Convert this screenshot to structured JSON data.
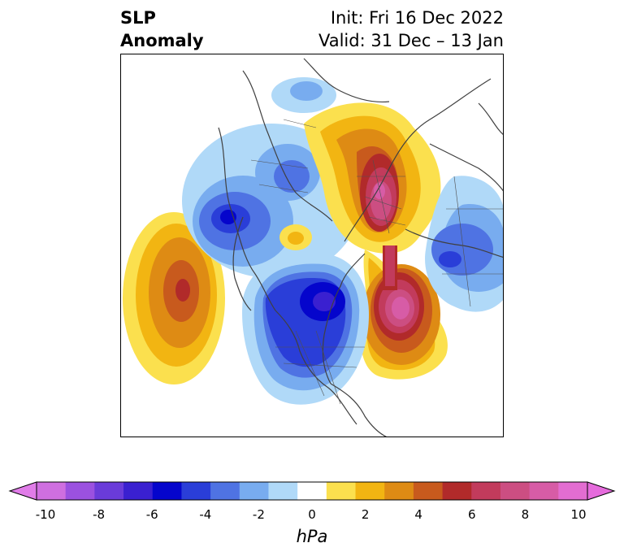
{
  "title": {
    "left_line1": "SLP",
    "left_line2": "Anomaly",
    "right_line1": "Init: Fri 16 Dec 2022",
    "right_line2": "Valid: 31 Dec – 13 Jan"
  },
  "colorbar": {
    "unit": "hPa",
    "ticks": [
      "-10",
      "-8",
      "-6",
      "-4",
      "-2",
      "0",
      "2",
      "4",
      "6",
      "8",
      "10"
    ],
    "colors": [
      "#cf6fe0",
      "#9b51e0",
      "#6a3bd9",
      "#3a20d0",
      "#0505cc",
      "#2a3ed8",
      "#4f73e3",
      "#78acef",
      "#b0d9f8",
      "#ffffff",
      "#fbe04e",
      "#f2b512",
      "#de8b14",
      "#c85a1d",
      "#b12a2a",
      "#c23b5c",
      "#cc4e82",
      "#d75ca6",
      "#e36dd1"
    ],
    "extend_low_color": "#e07ce8",
    "extend_high_color": "#e56bdc"
  }
}
